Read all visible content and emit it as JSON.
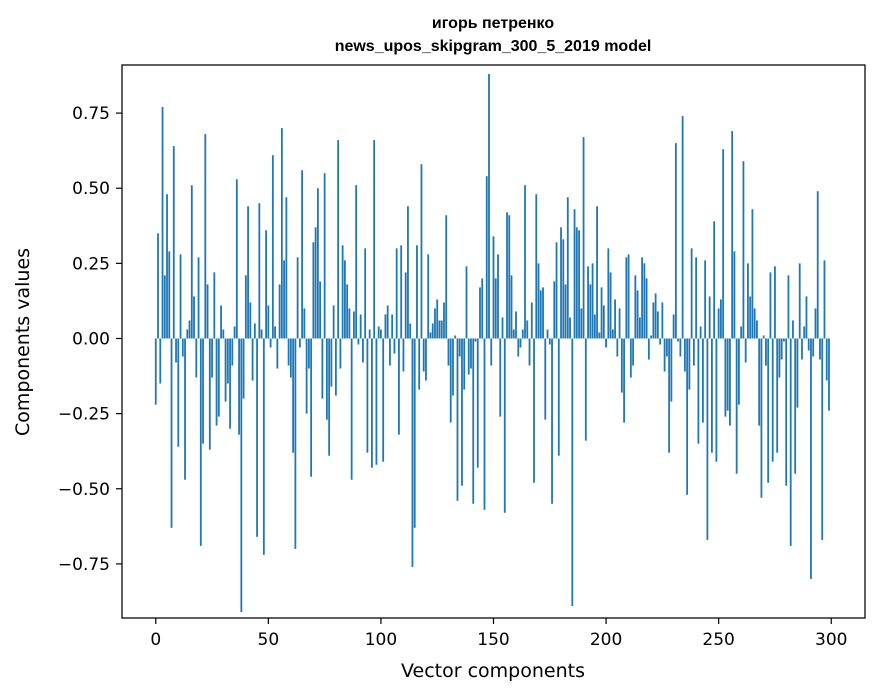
{
  "chart_data": {
    "type": "bar",
    "title": "игорь петренко",
    "subtitle": "news_upos_skipgram_300_5_2019 model",
    "xlabel": "Vector components",
    "ylabel": "Components values",
    "xlim": [
      -15,
      315
    ],
    "ylim": [
      -0.93,
      0.91
    ],
    "xticks": [
      0,
      50,
      100,
      150,
      200,
      250,
      300
    ],
    "xtick_labels": [
      "0",
      "50",
      "100",
      "150",
      "200",
      "250",
      "300"
    ],
    "yticks": [
      0.75,
      0.5,
      0.25,
      0.0,
      -0.25,
      -0.5,
      -0.75
    ],
    "ytick_labels": [
      "0.75",
      "0.50",
      "0.25",
      "0.00",
      "−0.25",
      "−0.50",
      "−0.75"
    ],
    "grid": false,
    "bar_color": "#1f77b4",
    "n_bars": 300,
    "values": [
      -0.22,
      0.35,
      -0.15,
      0.77,
      0.21,
      0.48,
      0.29,
      -0.63,
      0.64,
      -0.08,
      -0.36,
      0.28,
      -0.06,
      -0.47,
      0.03,
      0.06,
      0.51,
      0.14,
      -0.13,
      0.27,
      -0.69,
      -0.35,
      0.68,
      0.18,
      -0.37,
      -0.13,
      0.22,
      -0.29,
      -0.26,
      0.11,
      0.03,
      -0.21,
      -0.15,
      -0.3,
      -0.09,
      0.04,
      0.53,
      -0.32,
      -0.91,
      -0.2,
      0.21,
      0.44,
      0.12,
      -0.14,
      0.05,
      -0.66,
      0.45,
      0.03,
      -0.72,
      0.36,
      0.11,
      -0.03,
      0.61,
      0.04,
      -0.1,
      0.18,
      0.7,
      0.26,
      0.47,
      -0.09,
      -0.13,
      -0.38,
      -0.7,
      0.27,
      -0.03,
      0.56,
      0.1,
      -0.25,
      -0.1,
      -0.46,
      0.32,
      0.37,
      0.5,
      0.19,
      -0.2,
      0.55,
      -0.27,
      -0.39,
      -0.16,
      0.11,
      -0.19,
      0.66,
      -0.1,
      0.31,
      0.26,
      0.18,
      0.1,
      -0.47,
      0.09,
      0.51,
      -0.02,
      0.08,
      -0.08,
      0.3,
      -0.38,
      0.03,
      -0.43,
      0.66,
      -0.42,
      0.04,
      0.03,
      -0.41,
      0.08,
      0.11,
      -0.09,
      0.08,
      -0.05,
      0.3,
      -0.32,
      0.31,
      -0.11,
      0.22,
      0.44,
      0.05,
      -0.76,
      -0.63,
      0.31,
      -0.17,
      0.58,
      -0.11,
      -0.14,
      0.28,
      0.02,
      0.05,
      0.1,
      0.13,
      0.06,
      0.06,
      0.12,
      0.41,
      -0.09,
      -0.28,
      -0.19,
      0.01,
      -0.54,
      -0.06,
      -0.49,
      -0.17,
      0.24,
      -0.12,
      -0.1,
      -0.55,
      -0.01,
      -0.43,
      0.17,
      0.2,
      -0.57,
      0.54,
      0.88,
      -0.09,
      0.34,
      0.2,
      0.28,
      -0.26,
      0.07,
      -0.58,
      0.42,
      0.41,
      0.21,
      0.03,
      0.09,
      -0.06,
      -0.03,
      0.03,
      0.51,
      0.06,
      -0.09,
      0.12,
      -0.48,
      0.48,
      0.25,
      0.16,
      0.17,
      -0.27,
      0.03,
      -0.02,
      -0.55,
      0.19,
      0.32,
      -0.39,
      0.37,
      0.33,
      0.18,
      0.47,
      0.07,
      -0.89,
      0.43,
      0.37,
      0.36,
      0.1,
      0.67,
      -0.34,
      0.24,
      0.18,
      0.25,
      0.08,
      0.44,
      0.02,
      0.17,
      0.11,
      -0.03,
      0.3,
      0.22,
      0.03,
      0.13,
      -0.06,
      0.1,
      -0.18,
      -0.28,
      0.27,
      0.28,
      -0.13,
      -0.09,
      0.21,
      0.16,
      0.07,
      0.27,
      0.25,
      0.2,
      -0.07,
      0.01,
      0.12,
      0.15,
      0.09,
      -0.02,
      0.12,
      -0.11,
      -0.06,
      -0.38,
      -0.21,
      0.08,
      0.65,
      -0.01,
      -0.06,
      0.74,
      -0.11,
      -0.52,
      -0.17,
      0.3,
      -0.09,
      0.27,
      -0.35,
      0.04,
      -0.28,
      0.26,
      -0.67,
      0.14,
      -0.38,
      0.39,
      -0.41,
      0.1,
      0.13,
      0.63,
      -0.26,
      -0.24,
      -0.29,
      0.69,
      0.29,
      -0.45,
      -0.22,
      0.04,
      0.59,
      -0.08,
      0.25,
      0.14,
      0.43,
      0.1,
      0.06,
      -0.29,
      -0.53,
      0.01,
      -0.09,
      -0.48,
      0.22,
      -0.41,
      0.24,
      -0.38,
      -0.13,
      -0.07,
      -0.01,
      -0.49,
      0.21,
      -0.69,
      0.06,
      -0.45,
      -0.23,
      0.25,
      -0.07,
      0.04,
      0.14,
      -0.04,
      -0.8,
      -0.06,
      0.1,
      0.49,
      -0.07,
      -0.67,
      0.26,
      -0.14,
      -0.24
    ]
  }
}
